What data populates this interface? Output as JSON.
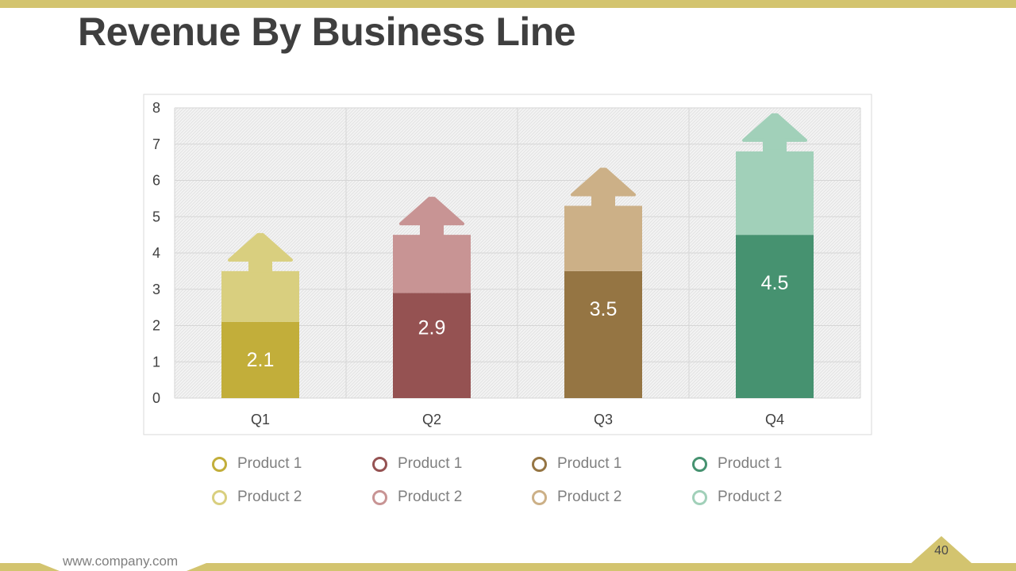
{
  "slide": {
    "title": "Revenue By Business Line",
    "footer_url": "www.company.com",
    "page_number": "40"
  },
  "colors": {
    "accent": "#d3c46f",
    "q1_product1": "#c2ae3a",
    "q1_product2": "#d9cf7f",
    "q2_product1": "#955252",
    "q2_product2": "#c89494",
    "q3_product1": "#957543",
    "q3_product2": "#ccb087",
    "q4_product1": "#469270",
    "q4_product2": "#a1d0b9"
  },
  "legend": {
    "columns": [
      {
        "product1": "Product 1",
        "product2": "Product 2",
        "color1": "#c2ae3a",
        "color2": "#d9cf7f"
      },
      {
        "product1": "Product 1",
        "product2": "Product 2",
        "color1": "#955252",
        "color2": "#c89494"
      },
      {
        "product1": "Product 1",
        "product2": "Product 2",
        "color1": "#957543",
        "color2": "#ccb087"
      },
      {
        "product1": "Product 1",
        "product2": "Product 2",
        "color1": "#469270",
        "color2": "#a1d0b9"
      }
    ]
  },
  "chart_data": {
    "type": "bar",
    "stacked": true,
    "title": "Revenue By Business Line",
    "categories": [
      "Q1",
      "Q2",
      "Q3",
      "Q4"
    ],
    "series": [
      {
        "name": "Product 1",
        "values": [
          2.1,
          2.9,
          3.5,
          4.5
        ],
        "labels": [
          "2.1",
          "2.9",
          "3.5",
          "4.5"
        ]
      },
      {
        "name": "Product 2",
        "values": [
          1.4,
          1.6,
          1.8,
          2.3
        ]
      }
    ],
    "ylim": [
      0,
      8
    ],
    "yticks": [
      "0",
      "1",
      "2",
      "3",
      "4",
      "5",
      "6",
      "7",
      "8"
    ],
    "xlabel": "",
    "ylabel": "",
    "grid": true,
    "bar_style": "arrow-topped stacked columns"
  }
}
